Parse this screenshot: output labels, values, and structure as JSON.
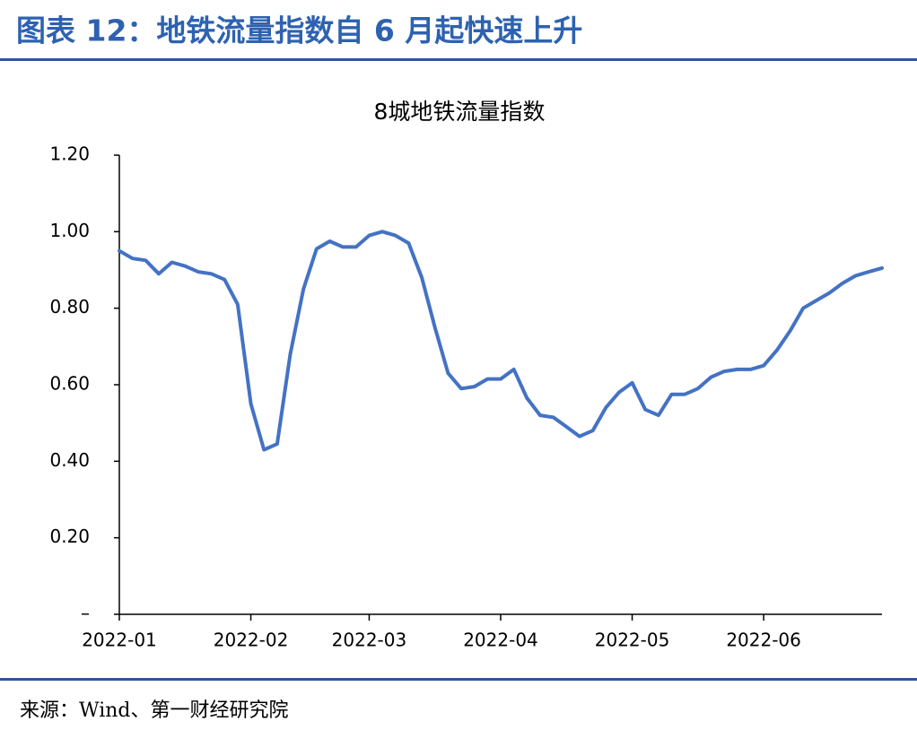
{
  "header": {
    "title": "图表 12：地铁流量指数自 6 月起快速上升"
  },
  "chart_data": {
    "type": "line",
    "title": "8城地铁流量指数",
    "categories": [
      "2022-01",
      null,
      null,
      null,
      null,
      null,
      null,
      null,
      null,
      null,
      "2022-02",
      null,
      null,
      null,
      null,
      null,
      null,
      null,
      null,
      "2022-03",
      null,
      null,
      null,
      null,
      null,
      null,
      null,
      null,
      null,
      "2022-04",
      null,
      null,
      null,
      null,
      null,
      null,
      null,
      null,
      null,
      "2022-05",
      null,
      null,
      null,
      null,
      null,
      null,
      null,
      null,
      null,
      "2022-06",
      null,
      null,
      null,
      null,
      null,
      null,
      null,
      null,
      null
    ],
    "series": [
      {
        "name": "8城地铁流量指数",
        "color": "#4472c4",
        "values": [
          0.95,
          0.93,
          0.925,
          0.89,
          0.92,
          0.91,
          0.895,
          0.89,
          0.875,
          0.81,
          0.55,
          0.43,
          0.445,
          0.68,
          0.85,
          0.955,
          0.975,
          0.96,
          0.96,
          0.99,
          1.0,
          0.99,
          0.97,
          0.88,
          0.75,
          0.63,
          0.59,
          0.595,
          0.615,
          0.615,
          0.64,
          0.565,
          0.52,
          0.515,
          0.49,
          0.465,
          0.48,
          0.54,
          0.58,
          0.605,
          0.535,
          0.52,
          0.575,
          0.575,
          0.59,
          0.62,
          0.635,
          0.64,
          0.64,
          0.65,
          0.69,
          0.74,
          0.8,
          0.82,
          0.84,
          0.865,
          0.885,
          0.895,
          0.905
        ]
      }
    ],
    "ylim": [
      0,
      1.2
    ],
    "yticks": [
      {
        "value": 0,
        "label": "–"
      },
      {
        "value": 0.2,
        "label": "0.20"
      },
      {
        "value": 0.4,
        "label": "0.40"
      },
      {
        "value": 0.6,
        "label": "0.60"
      },
      {
        "value": 0.8,
        "label": "0.80"
      },
      {
        "value": 1.0,
        "label": "1.00"
      },
      {
        "value": 1.2,
        "label": "1.20"
      }
    ],
    "grid": false
  },
  "footer": {
    "source": "来源：Wind、第一财经研究院"
  }
}
